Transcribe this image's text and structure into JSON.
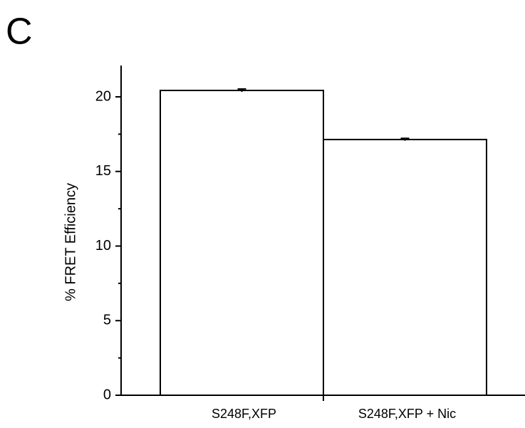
{
  "panel_label": "C",
  "chart_data": {
    "type": "bar",
    "ylabel": "% FRET Efficiency",
    "categories": [
      "S248F,XFP",
      "S248F,XFP + Nic"
    ],
    "values": [
      20.43,
      17.14
    ],
    "errors": [
      0.1,
      0.08
    ],
    "color": "#ffffff",
    "edgecolor": "#000000",
    "ylim": [
      0,
      22.1
    ],
    "yticks": [
      0,
      5,
      10,
      15,
      20
    ],
    "yminorticks": [
      2.5,
      7.5,
      12.5,
      17.5,
      22.5
    ],
    "grid": false
  }
}
